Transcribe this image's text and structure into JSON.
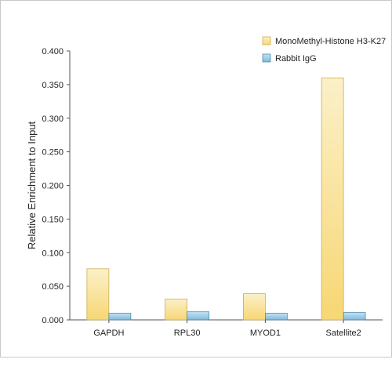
{
  "chart_data": {
    "type": "bar",
    "categories": [
      "GAPDH",
      "RPL30",
      "MYOD1",
      "Satellite2"
    ],
    "series": [
      {
        "name": "MonoMethyl-Histone H3-K27",
        "values": [
          0.076,
          0.031,
          0.039,
          0.36
        ],
        "color_top": "#fbf0c8",
        "color_bottom": "#f7d774",
        "stroke": "#c9a43c"
      },
      {
        "name": "Rabbit IgG",
        "values": [
          0.01,
          0.012,
          0.01,
          0.011
        ],
        "color_top": "#c4e2f2",
        "color_bottom": "#7fbadb",
        "stroke": "#3d7fa6"
      }
    ],
    "ylabel": "Relative Enrichment to Input",
    "xlabel": "",
    "ylim": [
      0,
      0.4
    ],
    "yticks": [
      "0.000",
      "0.050",
      "0.100",
      "0.150",
      "0.200",
      "0.250",
      "0.300",
      "0.350",
      "0.400"
    ],
    "grid": false,
    "legend_position": "top-right"
  }
}
